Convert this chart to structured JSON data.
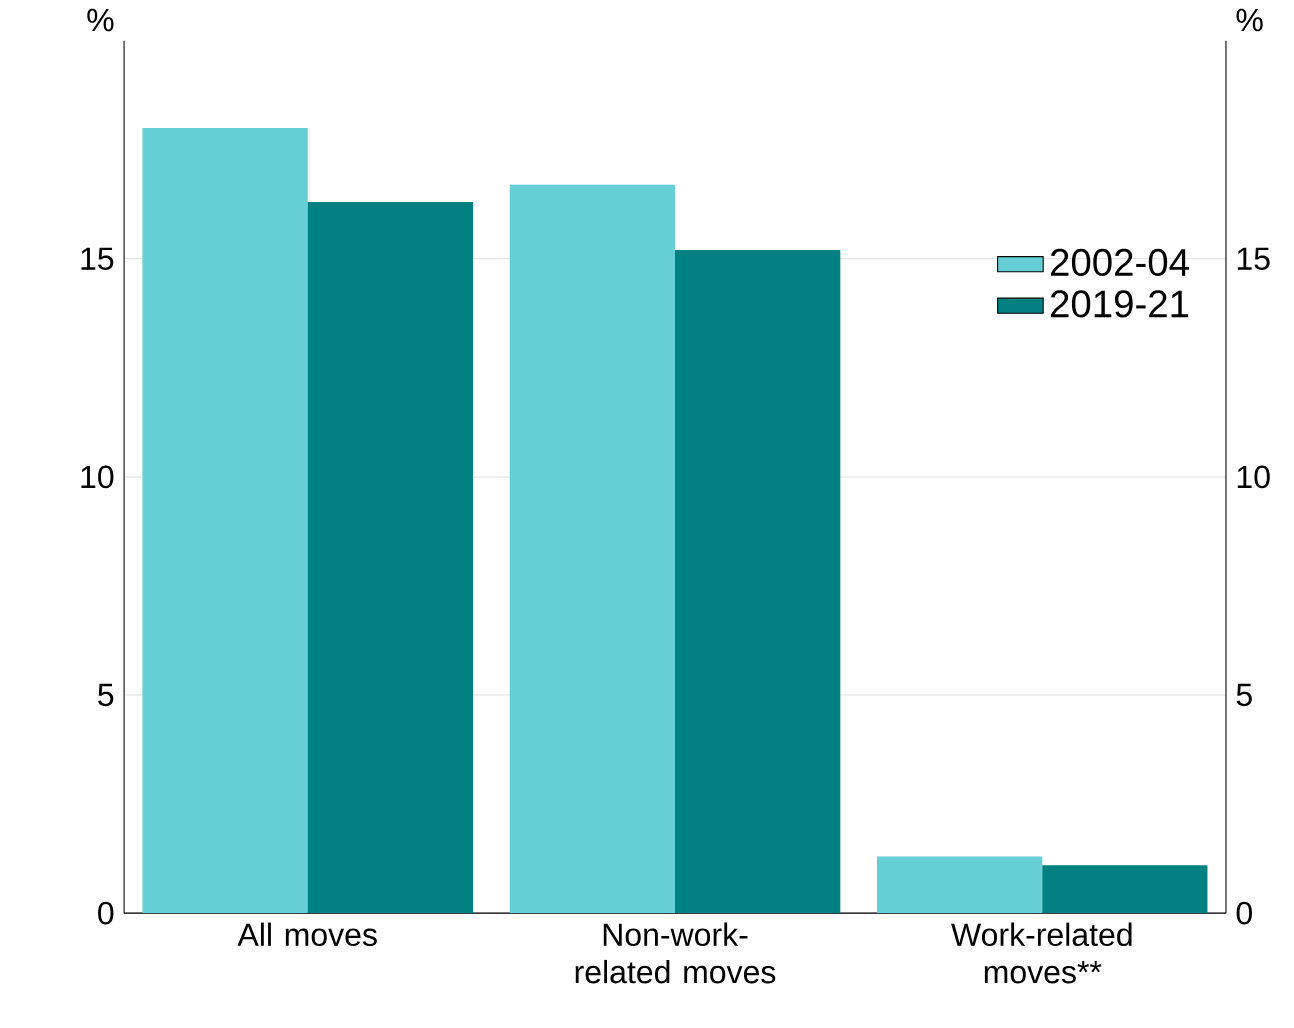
{
  "chart_data": {
    "type": "bar",
    "ylabel": "%",
    "y2label": "%",
    "categories": [
      "All moves",
      "Non-work-related moves",
      "Work-related moves**"
    ],
    "series": [
      {
        "name": "2002-04",
        "color": "#66cfd6",
        "values": [
          18.0,
          16.7,
          1.3
        ]
      },
      {
        "name": "2019-21",
        "color": "#008080",
        "values": [
          16.3,
          15.2,
          1.1
        ]
      }
    ],
    "ylim": [
      0,
      20
    ],
    "yticks": [
      0,
      5,
      10,
      15
    ],
    "y2lim": [
      0,
      20
    ],
    "y2ticks": [
      0,
      5,
      10,
      15
    ],
    "grid": "y",
    "legend": "right"
  }
}
